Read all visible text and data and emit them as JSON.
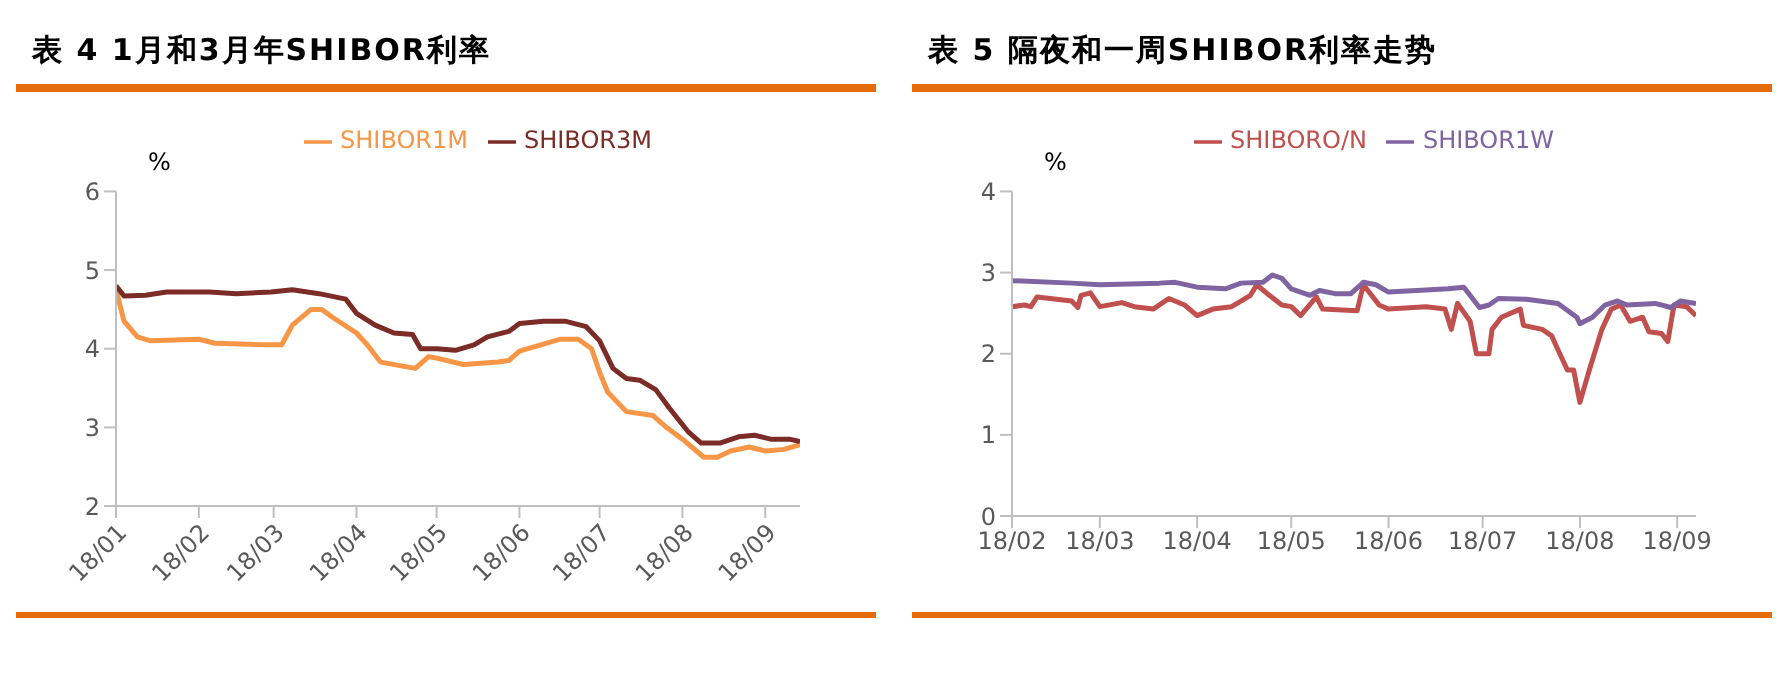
{
  "chart_data": [
    {
      "type": "line",
      "title": "表 4  1月和3月年SHIBOR利率",
      "ylabel": "%",
      "legend": "top",
      "grid": false,
      "marker": "none",
      "line_style": "solid",
      "xlim": [
        "--01-01",
        "--09-14"
      ],
      "xticks": [
        {
          "value": "--01-01",
          "label": "18/01"
        },
        {
          "value": "--02-01",
          "label": "18/02"
        },
        {
          "value": "--03-01",
          "label": "18/03"
        },
        {
          "value": "--04-01",
          "label": "18/04"
        },
        {
          "value": "--05-01",
          "label": "18/05"
        },
        {
          "value": "--06-01",
          "label": "18/06"
        },
        {
          "value": "--07-01",
          "label": "18/07"
        },
        {
          "value": "--08-01",
          "label": "18/08"
        },
        {
          "value": "--09-01",
          "label": "18/09"
        }
      ],
      "ylim": [
        2,
        6
      ],
      "yticks": [
        2,
        3,
        4,
        5,
        6
      ],
      "series": [
        {
          "name": "SHIBOR1M",
          "color": "#f79646",
          "x": [
            "--01-01",
            "--01-04",
            "--01-09",
            "--01-14",
            "--02-01",
            "--02-07",
            "--02-26",
            "--03-04",
            "--03-08",
            "--03-15",
            "--03-19",
            "--03-23",
            "--04-01",
            "--04-05",
            "--04-10",
            "--04-23",
            "--04-28",
            "--05-01",
            "--05-11",
            "--05-24",
            "--05-28",
            "--06-01",
            "--06-09",
            "--06-16",
            "--06-23",
            "--06-28",
            "--07-01",
            "--07-04",
            "--07-11",
            "--07-21",
            "--07-26",
            "--08-01",
            "--08-09",
            "--08-14",
            "--08-19",
            "--08-26",
            "--09-01",
            "--09-08",
            "--09-14"
          ],
          "values": [
            4.75,
            4.35,
            4.15,
            4.1,
            4.12,
            4.07,
            4.05,
            4.05,
            4.3,
            4.5,
            4.5,
            4.4,
            4.2,
            4.05,
            3.83,
            3.75,
            3.9,
            3.88,
            3.8,
            3.83,
            3.85,
            3.97,
            4.05,
            4.12,
            4.12,
            4.0,
            3.7,
            3.45,
            3.2,
            3.15,
            3.0,
            2.85,
            2.62,
            2.62,
            2.7,
            2.75,
            2.7,
            2.72,
            2.78
          ]
        },
        {
          "name": "SHIBOR3M",
          "color": "#7b2c26",
          "x": [
            "--01-01",
            "--01-04",
            "--01-12",
            "--01-20",
            "--02-05",
            "--02-15",
            "--02-28",
            "--03-08",
            "--03-18",
            "--03-28",
            "--04-01",
            "--04-08",
            "--04-15",
            "--04-22",
            "--04-25",
            "--05-01",
            "--05-08",
            "--05-15",
            "--05-20",
            "--05-28",
            "--06-01",
            "--06-10",
            "--06-18",
            "--06-26",
            "--07-01",
            "--07-06",
            "--07-11",
            "--07-16",
            "--07-22",
            "--07-27",
            "--08-03",
            "--08-08",
            "--08-15",
            "--08-22",
            "--08-28",
            "--09-03",
            "--09-10",
            "--09-14"
          ],
          "values": [
            4.8,
            4.67,
            4.68,
            4.72,
            4.72,
            4.7,
            4.72,
            4.75,
            4.7,
            4.63,
            4.45,
            4.3,
            4.2,
            4.18,
            4.0,
            4.0,
            3.98,
            4.05,
            4.15,
            4.22,
            4.32,
            4.35,
            4.35,
            4.28,
            4.1,
            3.75,
            3.62,
            3.6,
            3.48,
            3.25,
            2.95,
            2.8,
            2.8,
            2.88,
            2.9,
            2.85,
            2.85,
            2.82
          ]
        }
      ]
    },
    {
      "type": "line",
      "title": "表 5  隔夜和一周SHIBOR利率走势",
      "ylabel": "%",
      "legend": "top",
      "grid": false,
      "marker": "none",
      "line_style": "solid",
      "xlim": [
        "--02-01",
        "--09-07"
      ],
      "xticks": [
        {
          "value": "--02-01",
          "label": "18/02"
        },
        {
          "value": "--03-01",
          "label": "18/03"
        },
        {
          "value": "--04-01",
          "label": "18/04"
        },
        {
          "value": "--05-01",
          "label": "18/05"
        },
        {
          "value": "--06-01",
          "label": "18/06"
        },
        {
          "value": "--07-01",
          "label": "18/07"
        },
        {
          "value": "--08-01",
          "label": "18/08"
        },
        {
          "value": "--09-01",
          "label": "18/09"
        }
      ],
      "ylim": [
        0,
        4
      ],
      "yticks": [
        0,
        1,
        2,
        3,
        4
      ],
      "series": [
        {
          "name": "SHIBORO/N",
          "color": "#c0504d",
          "x": [
            "--02-01",
            "--02-05",
            "--02-07",
            "--02-09",
            "--02-20",
            "--02-22",
            "--02-23",
            "--02-26",
            "--03-01",
            "--03-08",
            "--03-12",
            "--03-18",
            "--03-23",
            "--03-28",
            "--04-01",
            "--04-06",
            "--04-12",
            "--04-18",
            "--04-20",
            "--04-24",
            "--04-28",
            "--05-01",
            "--05-04",
            "--05-09",
            "--05-11",
            "--05-22",
            "--05-24",
            "--05-29",
            "--06-01",
            "--06-13",
            "--06-19",
            "--06-21",
            "--06-23",
            "--06-27",
            "--06-29",
            "--07-03",
            "--07-04",
            "--07-07",
            "--07-13",
            "--07-14",
            "--07-20",
            "--07-23",
            "--07-25",
            "--07-28",
            "--07-30",
            "--08-01",
            "--08-04",
            "--08-08",
            "--08-11",
            "--08-14",
            "--08-17",
            "--08-21",
            "--08-23",
            "--08-27",
            "--08-29",
            "--08-31",
            "--09-04",
            "--09-07"
          ],
          "values": [
            2.58,
            2.6,
            2.58,
            2.7,
            2.65,
            2.57,
            2.72,
            2.75,
            2.58,
            2.63,
            2.58,
            2.55,
            2.68,
            2.6,
            2.47,
            2.55,
            2.58,
            2.72,
            2.85,
            2.72,
            2.6,
            2.58,
            2.47,
            2.7,
            2.55,
            2.53,
            2.85,
            2.6,
            2.55,
            2.58,
            2.55,
            2.3,
            2.62,
            2.4,
            2.0,
            2.0,
            2.3,
            2.45,
            2.55,
            2.35,
            2.3,
            2.22,
            2.05,
            1.8,
            1.8,
            1.4,
            1.8,
            2.3,
            2.55,
            2.6,
            2.4,
            2.45,
            2.27,
            2.25,
            2.15,
            2.6,
            2.58,
            2.47
          ]
        },
        {
          "name": "SHIBOR1W",
          "color": "#8064a2",
          "x": [
            "--02-01",
            "--02-20",
            "--03-01",
            "--03-20",
            "--03-25",
            "--04-01",
            "--04-10",
            "--04-15",
            "--04-22",
            "--04-25",
            "--04-28",
            "--05-01",
            "--05-07",
            "--05-10",
            "--05-15",
            "--05-20",
            "--05-24",
            "--05-28",
            "--06-01",
            "--06-10",
            "--06-20",
            "--06-25",
            "--06-30",
            "--07-03",
            "--07-06",
            "--07-15",
            "--07-25",
            "--07-31",
            "--08-01",
            "--08-05",
            "--08-09",
            "--08-13",
            "--08-16",
            "--08-25",
            "--08-30",
            "--09-02",
            "--09-07"
          ],
          "values": [
            2.9,
            2.87,
            2.85,
            2.87,
            2.88,
            2.82,
            2.8,
            2.87,
            2.88,
            2.97,
            2.93,
            2.8,
            2.72,
            2.78,
            2.74,
            2.74,
            2.88,
            2.85,
            2.76,
            2.78,
            2.8,
            2.82,
            2.57,
            2.6,
            2.68,
            2.67,
            2.62,
            2.45,
            2.37,
            2.45,
            2.6,
            2.65,
            2.6,
            2.62,
            2.57,
            2.65,
            2.62
          ]
        }
      ]
    }
  ]
}
